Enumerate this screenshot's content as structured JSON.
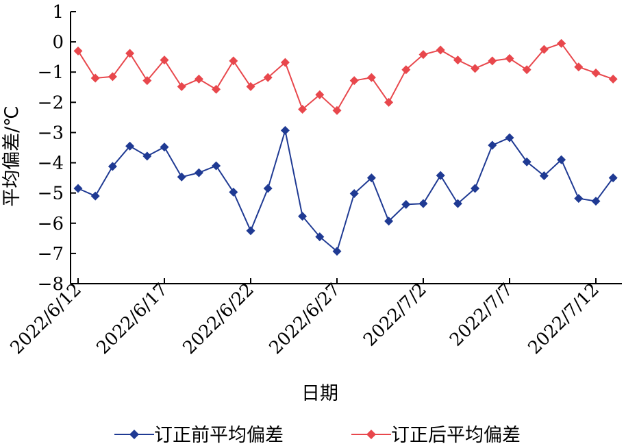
{
  "chart_data": {
    "type": "line",
    "title": "",
    "xlabel": "日期",
    "ylabel": "平均偏差/℃",
    "ylim": [
      -8,
      1
    ],
    "yticks": [
      "1",
      "0",
      "−1",
      "−2",
      "−3",
      "−4",
      "−5",
      "−6",
      "−7",
      "−8"
    ],
    "xtick_labels": [
      "2022/6/12",
      "2022/6/17",
      "2022/6/22",
      "2022/6/27",
      "2022/7/2",
      "2022/7/7",
      "2022/7/12"
    ],
    "x": [
      "2022/6/12",
      "2022/6/13",
      "2022/6/14",
      "2022/6/15",
      "2022/6/16",
      "2022/6/17",
      "2022/6/18",
      "2022/6/19",
      "2022/6/20",
      "2022/6/21",
      "2022/6/22",
      "2022/6/23",
      "2022/6/24",
      "2022/6/25",
      "2022/6/26",
      "2022/6/27",
      "2022/6/28",
      "2022/6/29",
      "2022/6/30",
      "2022/7/1",
      "2022/7/2",
      "2022/7/3",
      "2022/7/4",
      "2022/7/5",
      "2022/7/6",
      "2022/7/7",
      "2022/7/8",
      "2022/7/9",
      "2022/7/10",
      "2022/7/11",
      "2022/7/12",
      "2022/7/13"
    ],
    "grid": false,
    "legend_position": "bottom",
    "series": [
      {
        "name": "订正前平均偏差",
        "color": "#1f3a93",
        "values": [
          -4.85,
          -5.1,
          -4.12,
          -3.45,
          -3.78,
          -3.48,
          -4.47,
          -4.33,
          -4.1,
          -4.97,
          -6.25,
          -4.85,
          -2.93,
          -5.77,
          -6.45,
          -6.93,
          -5.02,
          -4.5,
          -5.93,
          -5.38,
          -5.35,
          -4.42,
          -5.35,
          -4.85,
          -3.42,
          -3.17,
          -3.97,
          -4.43,
          -3.9,
          -5.18,
          -5.27,
          -4.5
        ]
      },
      {
        "name": "订正后平均偏差",
        "color": "#e8474c",
        "values": [
          -0.3,
          -1.2,
          -1.15,
          -0.38,
          -1.28,
          -0.6,
          -1.48,
          -1.23,
          -1.57,
          -0.63,
          -1.48,
          -1.18,
          -0.68,
          -2.23,
          -1.75,
          -2.27,
          -1.28,
          -1.18,
          -2.0,
          -0.92,
          -0.42,
          -0.27,
          -0.6,
          -0.88,
          -0.63,
          -0.55,
          -0.92,
          -0.25,
          -0.05,
          -0.83,
          -1.03,
          -1.23
        ]
      }
    ]
  }
}
